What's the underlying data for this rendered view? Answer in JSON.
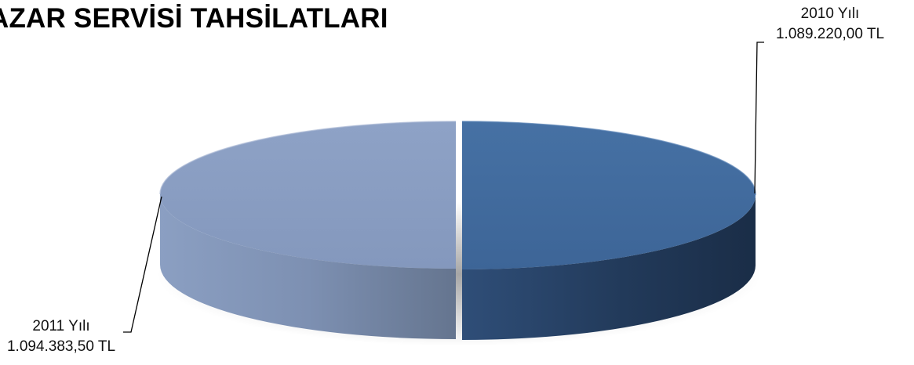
{
  "chart_data": {
    "type": "pie",
    "title": "AZAR SERVİSİ TAHSİLATLARI",
    "slices": [
      {
        "category": "2010 Yılı",
        "value_label": "1.089.220,00 TL",
        "value": 1089220.0,
        "color": "#416a9c"
      },
      {
        "category": "2011 Yılı",
        "value_label": "1.094.383,50 TL",
        "value": 1094383.5,
        "color": "#8a9ec2"
      }
    ],
    "legend": "none",
    "style": "3d-exploded"
  }
}
